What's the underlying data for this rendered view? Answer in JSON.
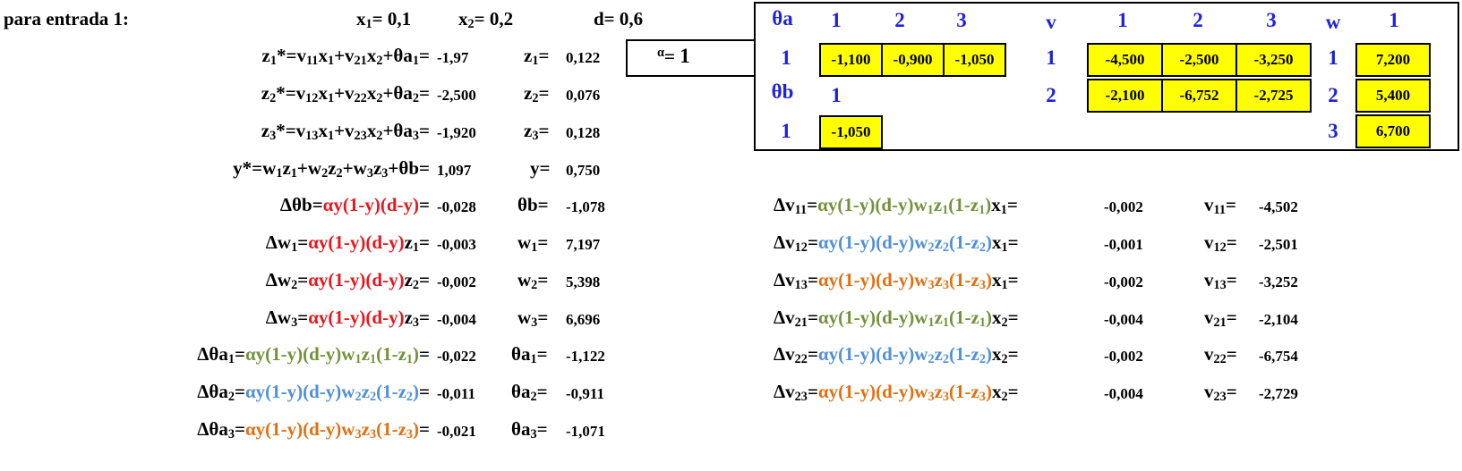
{
  "header": {
    "title": "para entrada 1:",
    "x1": "0,1",
    "x2": "0,2",
    "d": "0,6"
  },
  "alpha": {
    "value": "1"
  },
  "forward": {
    "z1_star": "-1,97",
    "z2_star": "-2,500",
    "z3_star": "-1,920",
    "y_star": "1,097",
    "z1": "0,122",
    "z2": "0,076",
    "z3": "0,128",
    "y": "0,750"
  },
  "output_updates": {
    "d_theta_b": "-0,028",
    "theta_b": "-1,078",
    "d_w1": "-0,003",
    "w1": "7,197",
    "d_w2": "-0,002",
    "w2": "5,398",
    "d_w3": "-0,004",
    "w3": "6,696"
  },
  "hidden_bias_updates": {
    "d_theta_a1": "-0,022",
    "theta_a1": "-1,122",
    "d_theta_a2": "-0,011",
    "theta_a2": "-0,911",
    "d_theta_a3": "-0,021",
    "theta_a3": "-1,071"
  },
  "v_updates": {
    "d_v11": "-0,002",
    "v11": "-4,502",
    "d_v12": "-0,001",
    "v12": "-2,501",
    "d_v13": "-0,002",
    "v13": "-3,252",
    "d_v21": "-0,004",
    "v21": "-2,104",
    "d_v22": "-0,002",
    "v22": "-6,754",
    "d_v23": "-0,004",
    "v23": "-2,729"
  },
  "panel": {
    "theta_a_label": "θa",
    "theta_a_cols": [
      "1",
      "2",
      "3"
    ],
    "theta_a_row": "1",
    "theta_a_values": [
      "-1,100",
      "-0,900",
      "-1,050"
    ],
    "theta_b_label": "θb",
    "theta_b_col": "1",
    "theta_b_row": "1",
    "theta_b_value": "-1,050",
    "v_label": "v",
    "v_cols": [
      "1",
      "2",
      "3"
    ],
    "v_rows": [
      "1",
      "2"
    ],
    "v_values": [
      [
        "-4,500",
        "-2,500",
        "-3,250"
      ],
      [
        "-2,100",
        "-6,752",
        "-2,725"
      ]
    ],
    "w_label": "w",
    "w_col": "1",
    "w_rows": [
      "1",
      "2",
      "3"
    ],
    "w_values": [
      "7,200",
      "5,400",
      "6,700"
    ]
  },
  "colors": {
    "red": "#e8161c",
    "green": "#72923a",
    "blue": "#4f8fdc",
    "orange": "#e36f12",
    "index_blue": "#1f23d8",
    "cell_yellow": "#ffff00"
  }
}
